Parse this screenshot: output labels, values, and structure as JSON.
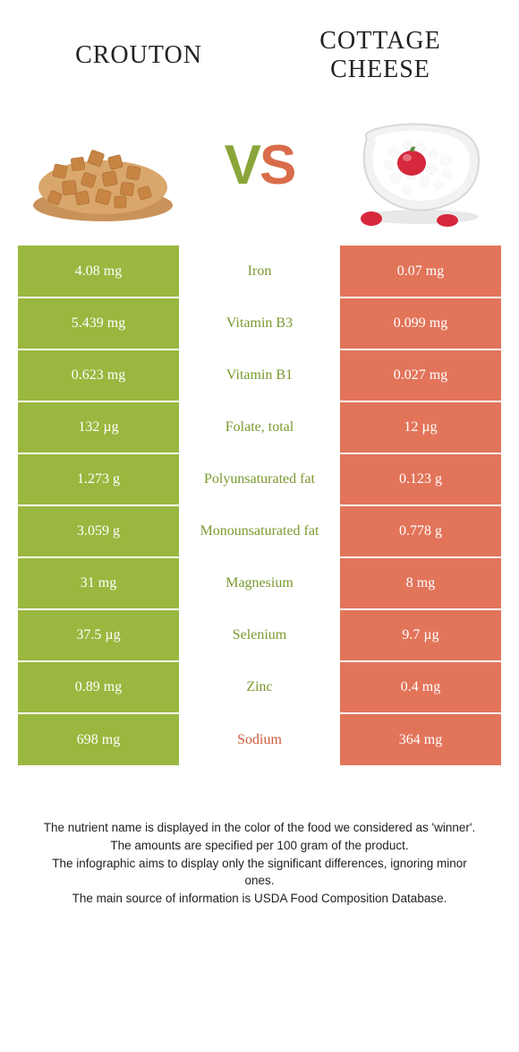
{
  "colors": {
    "left_bg": "#9ab73f",
    "right_bg": "#e2745a",
    "mid_green_text": "#7a9a2e",
    "mid_red_text": "#cf5a3d",
    "page_bg": "#ffffff"
  },
  "header": {
    "left_title": "CROUTON",
    "right_title": "COTTAGE CHEESE",
    "vs_v": "V",
    "vs_s": "S"
  },
  "rows": [
    {
      "left": "4.08 mg",
      "name": "Iron",
      "right": "0.07 mg",
      "winner": "left"
    },
    {
      "left": "5.439 mg",
      "name": "Vitamin B3",
      "right": "0.099 mg",
      "winner": "left"
    },
    {
      "left": "0.623 mg",
      "name": "Vitamin B1",
      "right": "0.027 mg",
      "winner": "left"
    },
    {
      "left": "132 µg",
      "name": "Folate, total",
      "right": "12 µg",
      "winner": "left"
    },
    {
      "left": "1.273 g",
      "name": "Polyunsaturated fat",
      "right": "0.123 g",
      "winner": "left"
    },
    {
      "left": "3.059 g",
      "name": "Monounsaturated fat",
      "right": "0.778 g",
      "winner": "left"
    },
    {
      "left": "31 mg",
      "name": "Magnesium",
      "right": "8 mg",
      "winner": "left"
    },
    {
      "left": "37.5 µg",
      "name": "Selenium",
      "right": "9.7 µg",
      "winner": "left"
    },
    {
      "left": "0.89 mg",
      "name": "Zinc",
      "right": "0.4 mg",
      "winner": "left"
    },
    {
      "left": "698 mg",
      "name": "Sodium",
      "right": "364 mg",
      "winner": "right"
    }
  ],
  "footer": {
    "line1": "The nutrient name is displayed in the color of the food we considered as 'winner'.",
    "line2": "The amounts are specified per 100 gram of the product.",
    "line3": "The infographic aims to display only the significant differences, ignoring minor ones.",
    "line4": "The main source of information is USDA Food Composition Database."
  }
}
